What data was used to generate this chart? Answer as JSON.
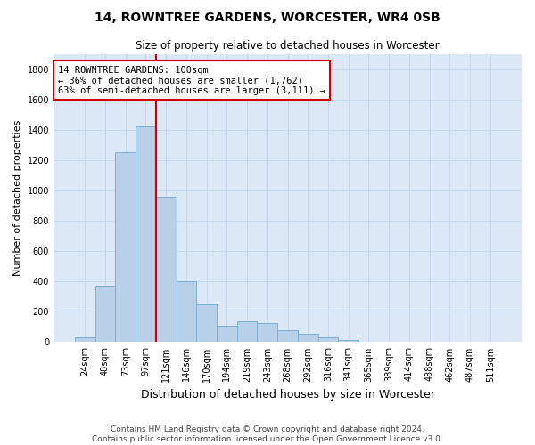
{
  "title": "14, ROWNTREE GARDENS, WORCESTER, WR4 0SB",
  "subtitle": "Size of property relative to detached houses in Worcester",
  "xlabel": "Distribution of detached houses by size in Worcester",
  "ylabel": "Number of detached properties",
  "categories": [
    "24sqm",
    "48sqm",
    "73sqm",
    "97sqm",
    "121sqm",
    "146sqm",
    "170sqm",
    "194sqm",
    "219sqm",
    "243sqm",
    "268sqm",
    "292sqm",
    "316sqm",
    "341sqm",
    "365sqm",
    "389sqm",
    "414sqm",
    "438sqm",
    "462sqm",
    "487sqm",
    "511sqm"
  ],
  "values": [
    30,
    370,
    1250,
    1420,
    960,
    400,
    250,
    110,
    135,
    125,
    80,
    55,
    30,
    15,
    0,
    0,
    0,
    0,
    0,
    0,
    0
  ],
  "bar_color": "#b8d0e8",
  "bar_edge_color": "#7aafd4",
  "vline_color": "#cc0000",
  "annotation_text": "14 ROWNTREE GARDENS: 100sqm\n← 36% of detached houses are smaller (1,762)\n63% of semi-detached houses are larger (3,111) →",
  "annotation_box_color": "#ffffff",
  "annotation_box_edge": "#cc0000",
  "ylim": [
    0,
    1900
  ],
  "yticks": [
    0,
    200,
    400,
    600,
    800,
    1000,
    1200,
    1400,
    1600,
    1800
  ],
  "grid_color": "#c8d8ec",
  "background_color": "#dce8f5",
  "footer_line1": "Contains HM Land Registry data © Crown copyright and database right 2024.",
  "footer_line2": "Contains public sector information licensed under the Open Government Licence v3.0."
}
